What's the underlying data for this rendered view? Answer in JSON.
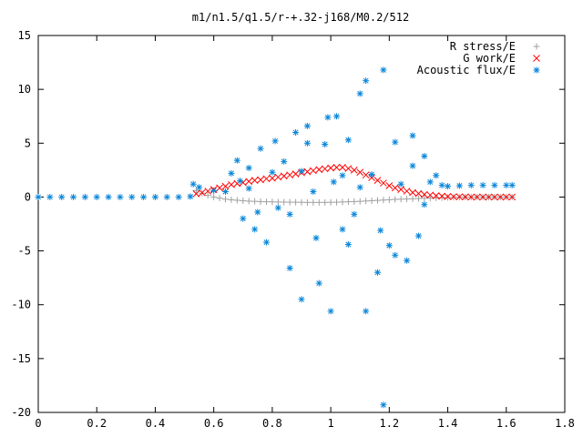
{
  "chart_data": {
    "type": "scatter",
    "title": "m1/n1.5/q1.5/r-+.32-j168/M0.2/512",
    "xlabel": "",
    "ylabel": "",
    "xlim": [
      0,
      1.8
    ],
    "ylim": [
      -20,
      15
    ],
    "x_ticks": [
      "0",
      "0.2",
      "0.4",
      "0.6",
      "0.8",
      "1",
      "1.2",
      "1.4",
      "1.6",
      "1.8"
    ],
    "y_ticks": [
      "15",
      "10",
      "5",
      "0",
      "-5",
      "-10",
      "-15",
      "-20"
    ],
    "legend_position": "top-right",
    "grid": false,
    "series": [
      {
        "name": "R stress/E",
        "marker": "plus",
        "color": "#a0a0a0",
        "points": [
          [
            0.54,
            0.6
          ],
          [
            0.56,
            0.35
          ],
          [
            0.58,
            0.15
          ],
          [
            0.6,
            0.0
          ],
          [
            0.62,
            -0.1
          ],
          [
            0.64,
            -0.2
          ],
          [
            0.66,
            -0.25
          ],
          [
            0.68,
            -0.3
          ],
          [
            0.7,
            -0.35
          ],
          [
            0.72,
            -0.38
          ],
          [
            0.74,
            -0.4
          ],
          [
            0.76,
            -0.42
          ],
          [
            0.78,
            -0.44
          ],
          [
            0.8,
            -0.45
          ],
          [
            0.82,
            -0.46
          ],
          [
            0.84,
            -0.47
          ],
          [
            0.86,
            -0.48
          ],
          [
            0.88,
            -0.48
          ],
          [
            0.9,
            -0.49
          ],
          [
            0.92,
            -0.5
          ],
          [
            0.94,
            -0.5
          ],
          [
            0.96,
            -0.5
          ],
          [
            0.98,
            -0.5
          ],
          [
            1.0,
            -0.49
          ],
          [
            1.02,
            -0.48
          ],
          [
            1.04,
            -0.46
          ],
          [
            1.06,
            -0.44
          ],
          [
            1.08,
            -0.42
          ],
          [
            1.1,
            -0.4
          ],
          [
            1.12,
            -0.37
          ],
          [
            1.14,
            -0.34
          ],
          [
            1.16,
            -0.31
          ],
          [
            1.18,
            -0.28
          ],
          [
            1.2,
            -0.25
          ],
          [
            1.22,
            -0.22
          ],
          [
            1.24,
            -0.2
          ],
          [
            1.26,
            -0.18
          ],
          [
            1.28,
            -0.16
          ],
          [
            1.3,
            -0.14
          ],
          [
            1.32,
            -0.12
          ],
          [
            1.34,
            -0.1
          ],
          [
            1.36,
            -0.08
          ],
          [
            1.38,
            -0.06
          ],
          [
            1.4,
            -0.04
          ],
          [
            1.42,
            -0.03
          ],
          [
            1.44,
            -0.02
          ],
          [
            1.46,
            -0.01
          ],
          [
            1.48,
            0.0
          ],
          [
            1.5,
            0.0
          ],
          [
            1.52,
            0.0
          ],
          [
            1.54,
            0.0
          ],
          [
            1.56,
            0.0
          ],
          [
            1.58,
            0.0
          ],
          [
            1.6,
            0.0
          ],
          [
            1.62,
            0.0
          ]
        ]
      },
      {
        "name": "G work/E",
        "marker": "cross",
        "color": "#ff0000",
        "points": [
          [
            0.54,
            0.3
          ],
          [
            0.56,
            0.4
          ],
          [
            0.58,
            0.55
          ],
          [
            0.6,
            0.7
          ],
          [
            0.62,
            0.85
          ],
          [
            0.64,
            1.0
          ],
          [
            0.66,
            1.15
          ],
          [
            0.68,
            1.25
          ],
          [
            0.7,
            1.35
          ],
          [
            0.72,
            1.45
          ],
          [
            0.74,
            1.55
          ],
          [
            0.76,
            1.6
          ],
          [
            0.78,
            1.7
          ],
          [
            0.8,
            1.75
          ],
          [
            0.82,
            1.85
          ],
          [
            0.84,
            1.95
          ],
          [
            0.86,
            2.05
          ],
          [
            0.88,
            2.15
          ],
          [
            0.9,
            2.25
          ],
          [
            0.92,
            2.35
          ],
          [
            0.94,
            2.45
          ],
          [
            0.96,
            2.55
          ],
          [
            0.98,
            2.62
          ],
          [
            1.0,
            2.7
          ],
          [
            1.02,
            2.75
          ],
          [
            1.04,
            2.75
          ],
          [
            1.06,
            2.65
          ],
          [
            1.08,
            2.5
          ],
          [
            1.1,
            2.3
          ],
          [
            1.12,
            2.05
          ],
          [
            1.14,
            1.8
          ],
          [
            1.16,
            1.55
          ],
          [
            1.18,
            1.3
          ],
          [
            1.2,
            1.05
          ],
          [
            1.22,
            0.85
          ],
          [
            1.24,
            0.7
          ],
          [
            1.26,
            0.55
          ],
          [
            1.28,
            0.42
          ],
          [
            1.3,
            0.32
          ],
          [
            1.32,
            0.24
          ],
          [
            1.34,
            0.18
          ],
          [
            1.36,
            0.12
          ],
          [
            1.38,
            0.08
          ],
          [
            1.4,
            0.05
          ],
          [
            1.42,
            0.03
          ],
          [
            1.44,
            0.02
          ],
          [
            1.46,
            0.01
          ],
          [
            1.48,
            0.0
          ],
          [
            1.5,
            0.0
          ],
          [
            1.52,
            0.0
          ],
          [
            1.54,
            0.0
          ],
          [
            1.56,
            0.0
          ],
          [
            1.58,
            0.0
          ],
          [
            1.6,
            0.0
          ],
          [
            1.62,
            0.0
          ]
        ]
      },
      {
        "name": "Acoustic flux/E",
        "marker": "star",
        "color": "#0a86d9",
        "points": [
          [
            0.0,
            0.0
          ],
          [
            0.04,
            0.0
          ],
          [
            0.08,
            0.0
          ],
          [
            0.12,
            0.0
          ],
          [
            0.16,
            0.0
          ],
          [
            0.2,
            0.0
          ],
          [
            0.24,
            0.0
          ],
          [
            0.28,
            0.0
          ],
          [
            0.32,
            0.0
          ],
          [
            0.36,
            0.0
          ],
          [
            0.4,
            0.0
          ],
          [
            0.44,
            0.0
          ],
          [
            0.48,
            0.0
          ],
          [
            0.52,
            0.05
          ],
          [
            1.4,
            1.0
          ],
          [
            1.44,
            1.05
          ],
          [
            1.48,
            1.1
          ],
          [
            1.52,
            1.1
          ],
          [
            1.56,
            1.1
          ],
          [
            1.6,
            1.1
          ],
          [
            1.62,
            1.1
          ],
          [
            0.53,
            1.2
          ],
          [
            0.55,
            0.9
          ],
          [
            0.6,
            0.6
          ],
          [
            0.64,
            0.5
          ],
          [
            0.66,
            2.2
          ],
          [
            0.68,
            3.4
          ],
          [
            0.7,
            -2.0
          ],
          [
            0.72,
            0.8
          ],
          [
            0.74,
            -3.0
          ],
          [
            0.76,
            4.5
          ],
          [
            0.78,
            -4.2
          ],
          [
            0.8,
            2.3
          ],
          [
            0.82,
            -1.0
          ],
          [
            0.84,
            3.3
          ],
          [
            0.86,
            -6.6
          ],
          [
            0.88,
            6.0
          ],
          [
            0.9,
            -9.5
          ],
          [
            0.92,
            6.6
          ],
          [
            0.94,
            0.5
          ],
          [
            0.96,
            -8.0
          ],
          [
            0.98,
            4.9
          ],
          [
            1.0,
            -10.6
          ],
          [
            1.02,
            7.5
          ],
          [
            1.04,
            -3.0
          ],
          [
            1.06,
            5.3
          ],
          [
            1.08,
            -1.6
          ],
          [
            1.1,
            9.6
          ],
          [
            1.12,
            -10.6
          ],
          [
            1.14,
            2.1
          ],
          [
            1.16,
            -7.0
          ],
          [
            1.18,
            11.8
          ],
          [
            1.2,
            -4.5
          ],
          [
            1.22,
            5.1
          ],
          [
            1.24,
            1.2
          ],
          [
            1.26,
            -5.9
          ],
          [
            1.28,
            5.7
          ],
          [
            1.3,
            -3.6
          ],
          [
            1.32,
            3.8
          ],
          [
            1.34,
            1.4
          ],
          [
            1.36,
            2.0
          ],
          [
            1.38,
            1.1
          ],
          [
            1.18,
            -19.3
          ],
          [
            1.12,
            10.8
          ],
          [
            0.92,
            5.0
          ],
          [
            0.99,
            7.4
          ],
          [
            1.17,
            -3.1
          ],
          [
            0.72,
            2.7
          ],
          [
            0.81,
            5.2
          ],
          [
            1.28,
            2.9
          ],
          [
            1.01,
            1.4
          ],
          [
            0.86,
            -1.6
          ],
          [
            1.06,
            -4.4
          ],
          [
            0.95,
            -3.8
          ],
          [
            1.22,
            -5.4
          ],
          [
            0.75,
            -1.4
          ],
          [
            0.9,
            2.4
          ],
          [
            1.1,
            0.9
          ],
          [
            0.69,
            1.5
          ],
          [
            1.32,
            -0.7
          ],
          [
            1.04,
            2.0
          ]
        ]
      }
    ]
  }
}
